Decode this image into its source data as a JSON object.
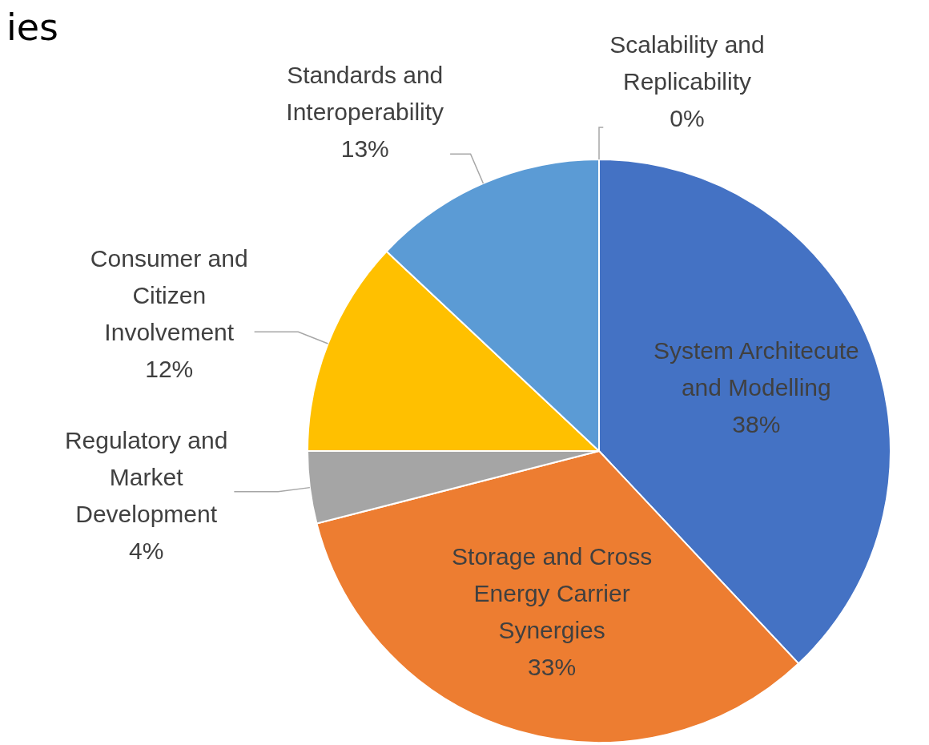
{
  "chart_data": {
    "type": "pie",
    "title": "ies",
    "categories": [
      "System Architecute and Modelling",
      "Storage and Cross Energy Carrier Synergies",
      "Regulatory and Market Development",
      "Consumer and Citizen Involvement",
      "Standards and Interoperability",
      "Scalability and Replicability"
    ],
    "values": [
      38,
      33,
      4,
      12,
      13,
      0
    ],
    "value_labels": [
      "38%",
      "33%",
      "4%",
      "12%",
      "13%",
      "0%"
    ],
    "colors": [
      "#4472c4",
      "#ed7d31",
      "#a5a5a5",
      "#ffc000",
      "#5b9bd5",
      "#70ad47"
    ],
    "legend": false
  }
}
